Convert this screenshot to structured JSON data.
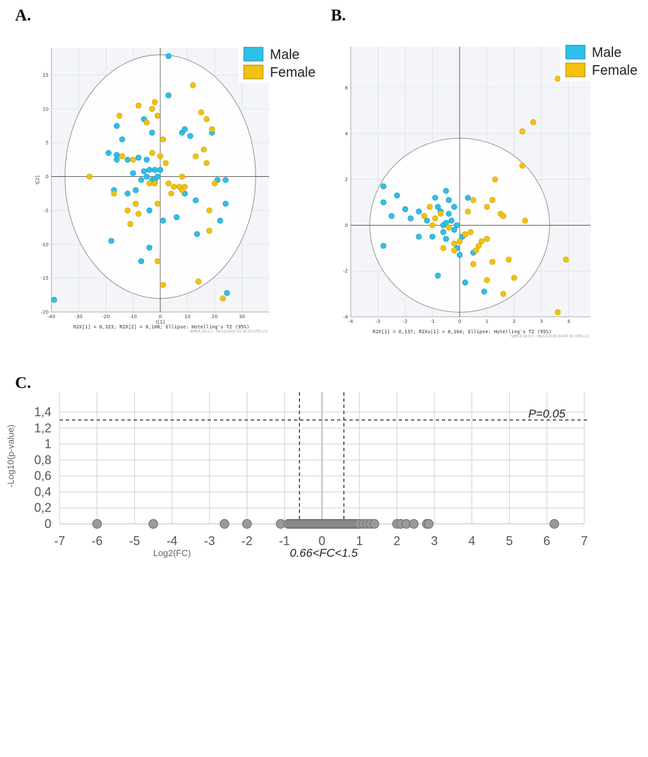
{
  "labels": {
    "a": "A.",
    "b": "B.",
    "c": "C."
  },
  "colors": {
    "male": "#2ec0e8",
    "female": "#f2c20c",
    "gray_point": "#9a9a9a",
    "ellipse": "#888888",
    "plot_bg": "#f3f5f8"
  },
  "chart_data": [
    {
      "type": "scatter",
      "panel": "A",
      "xlabel": "t[1]",
      "ylabel": "t[2]",
      "xlim": [
        -40,
        40
      ],
      "ylim": [
        -20,
        19
      ],
      "xticks": [
        -40,
        -30,
        -20,
        -10,
        0,
        10,
        20,
        30
      ],
      "yticks": [
        15,
        10,
        5,
        0,
        -5,
        -10,
        -15,
        -20
      ],
      "footer": "R2X[1] = 0,323; R2X[2] = 0,108; Ellipse: Hotelling's T2 (95%)",
      "watermark": "SIMCA 15.0.2 - 06/12/2020 15:30:03 (UTC+1)",
      "ellipse": {
        "rx": 35,
        "ry": 18
      },
      "legend": [
        "Male",
        "Female"
      ],
      "series": [
        {
          "name": "Male",
          "points": [
            [
              3,
              17.8
            ],
            [
              -39,
              -18.2
            ],
            [
              24.5,
              -17.2
            ],
            [
              -7,
              -12.5
            ],
            [
              -4,
              -10.5
            ],
            [
              -18,
              -9.5
            ],
            [
              13.5,
              -8.5
            ],
            [
              1,
              -6.5
            ],
            [
              6,
              -6
            ],
            [
              -4,
              -5
            ],
            [
              -17,
              -2
            ],
            [
              22,
              -6.5
            ],
            [
              24,
              -4
            ],
            [
              13,
              -3.5
            ],
            [
              9,
              -2.5
            ],
            [
              -12,
              -2.5
            ],
            [
              -9,
              -2
            ],
            [
              -10,
              0.5
            ],
            [
              -7,
              -0.5
            ],
            [
              -5,
              0
            ],
            [
              -3,
              -0.5
            ],
            [
              -2,
              -0.5
            ],
            [
              -1,
              0
            ],
            [
              0,
              1
            ],
            [
              -4,
              1
            ],
            [
              -5,
              2.5
            ],
            [
              -8,
              2.8
            ],
            [
              -12,
              2.5
            ],
            [
              -16,
              2.5
            ],
            [
              -19,
              3.5
            ],
            [
              -14,
              5.5
            ],
            [
              -16,
              7.5
            ],
            [
              -6,
              8.5
            ],
            [
              -3,
              6.5
            ],
            [
              3,
              12
            ],
            [
              8,
              6.5
            ],
            [
              9,
              7
            ],
            [
              11,
              6
            ],
            [
              19,
              6.5
            ],
            [
              21,
              -0.5
            ],
            [
              24,
              -0.5
            ],
            [
              -16,
              3.2
            ],
            [
              -2,
              1
            ],
            [
              -6,
              0.8
            ]
          ]
        },
        {
          "name": "Female",
          "points": [
            [
              -26,
              0
            ],
            [
              -17,
              -2.5
            ],
            [
              -15,
              9
            ],
            [
              -12,
              -5
            ],
            [
              -11,
              -7
            ],
            [
              -9,
              -4
            ],
            [
              -8,
              -5.5
            ],
            [
              -10,
              2.5
            ],
            [
              -8,
              10.5
            ],
            [
              -5,
              8
            ],
            [
              -3,
              10
            ],
            [
              -2,
              11
            ],
            [
              -1,
              9
            ],
            [
              0,
              3
            ],
            [
              1,
              5.5
            ],
            [
              -1,
              -4
            ],
            [
              -2,
              -1
            ],
            [
              -4,
              -1
            ],
            [
              -3,
              3.5
            ],
            [
              2,
              2
            ],
            [
              3,
              -1
            ],
            [
              4,
              -2.5
            ],
            [
              5,
              -1.5
            ],
            [
              7,
              -1.5
            ],
            [
              8,
              0
            ],
            [
              8,
              -2
            ],
            [
              9,
              -1.5
            ],
            [
              12,
              13.5
            ],
            [
              13,
              3
            ],
            [
              14,
              -15.5
            ],
            [
              15,
              9.5
            ],
            [
              16,
              4
            ],
            [
              17,
              2
            ],
            [
              17,
              8.5
            ],
            [
              18,
              -5
            ],
            [
              18,
              -8
            ],
            [
              19,
              7
            ],
            [
              20,
              -1
            ],
            [
              23,
              -18
            ],
            [
              1,
              -16
            ],
            [
              -1,
              -12.5
            ],
            [
              -14,
              3
            ]
          ]
        }
      ]
    },
    {
      "type": "scatter",
      "panel": "B",
      "xlabel": "",
      "ylabel": "",
      "xlim": [
        -4,
        4.8
      ],
      "ylim": [
        -4,
        7.8
      ],
      "xticks": [
        -4,
        -3,
        -2,
        -1,
        0,
        1,
        2,
        3,
        4
      ],
      "yticks": [
        6,
        4,
        2,
        0,
        -2,
        -4
      ],
      "footer": "R2X[1] = 0,137; R2Xo[1] = 0,164; Ellipse: Hotelling's T2 (95%)",
      "watermark": "SIMCA 15.0.2 - 06/12/2020 14:43:30 (UTC+1)",
      "ellipse": {
        "rx": 3.3,
        "ry": 3.8
      },
      "legend": [
        "Male",
        "Female"
      ],
      "series": [
        {
          "name": "Male",
          "points": [
            [
              -2.8,
              1.7
            ],
            [
              -2.8,
              1.0
            ],
            [
              -2.8,
              -0.9
            ],
            [
              -2.5,
              0.4
            ],
            [
              -2.3,
              1.3
            ],
            [
              -2.0,
              0.7
            ],
            [
              -1.8,
              0.3
            ],
            [
              -1.5,
              0.6
            ],
            [
              -1.5,
              -0.5
            ],
            [
              -1.2,
              0.2
            ],
            [
              -1.0,
              -0.5
            ],
            [
              -0.9,
              1.2
            ],
            [
              -0.8,
              0.8
            ],
            [
              -0.7,
              0.6
            ],
            [
              -0.6,
              0.0
            ],
            [
              -0.5,
              0.1
            ],
            [
              -0.5,
              1.5
            ],
            [
              -0.4,
              0.5
            ],
            [
              -0.3,
              0.2
            ],
            [
              -0.2,
              -0.2
            ],
            [
              -0.1,
              0.0
            ],
            [
              0.0,
              -1.3
            ],
            [
              -0.1,
              -1.0
            ],
            [
              0.1,
              -0.5
            ],
            [
              0.2,
              -0.4
            ],
            [
              0.3,
              1.2
            ],
            [
              0.5,
              -1.2
            ],
            [
              -0.5,
              -0.6
            ],
            [
              0.2,
              -2.5
            ],
            [
              -0.8,
              -2.2
            ],
            [
              0.9,
              -2.9
            ],
            [
              -0.4,
              1.1
            ],
            [
              -0.2,
              0.8
            ],
            [
              -0.6,
              -0.3
            ]
          ]
        },
        {
          "name": "Female",
          "points": [
            [
              3.6,
              6.4
            ],
            [
              2.7,
              4.5
            ],
            [
              2.3,
              4.1
            ],
            [
              2.3,
              2.6
            ],
            [
              1.3,
              2.0
            ],
            [
              0.5,
              1.1
            ],
            [
              1.0,
              0.8
            ],
            [
              1.5,
              0.5
            ],
            [
              1.2,
              1.1
            ],
            [
              1.6,
              0.4
            ],
            [
              2.4,
              0.2
            ],
            [
              3.9,
              -1.5
            ],
            [
              1.8,
              -1.5
            ],
            [
              1.2,
              -1.6
            ],
            [
              1.0,
              -0.6
            ],
            [
              0.8,
              -0.7
            ],
            [
              0.7,
              -0.9
            ],
            [
              0.6,
              -1.1
            ],
            [
              0.5,
              -1.7
            ],
            [
              0.4,
              -0.3
            ],
            [
              0.2,
              -0.4
            ],
            [
              0.0,
              -0.7
            ],
            [
              -0.2,
              -1.1
            ],
            [
              -0.4,
              -0.1
            ],
            [
              -0.6,
              -1.0
            ],
            [
              -0.9,
              0.3
            ],
            [
              -1.1,
              0.8
            ],
            [
              -1.3,
              0.4
            ],
            [
              -0.7,
              0.5
            ],
            [
              1.0,
              -2.4
            ],
            [
              1.6,
              -3.0
            ],
            [
              2.0,
              -2.3
            ],
            [
              3.6,
              -3.8
            ],
            [
              0.3,
              0.6
            ],
            [
              -0.2,
              -0.8
            ],
            [
              -1.0,
              0.0
            ]
          ]
        }
      ]
    },
    {
      "type": "scatter",
      "panel": "C",
      "xlabel": "Log2(FC)",
      "ylabel": "-Log10(p-value)",
      "xlim": [
        -7,
        7
      ],
      "ylim": [
        0,
        1.4
      ],
      "xticks": [
        "-7",
        "-6",
        "-5",
        "-4",
        "-3",
        "-2",
        "-1",
        "0",
        "1",
        "2",
        "3",
        "4",
        "5",
        "6",
        "7"
      ],
      "yticks": [
        "1,4",
        "1,2",
        "1",
        "0,8",
        "0,6",
        "0,4",
        "0,2",
        "0"
      ],
      "threshold_p_label": "P=0.05",
      "threshold_fc_label": "0.66<FC<1.5",
      "threshold_y": 1.301,
      "threshold_x": [
        -0.6,
        0.585
      ],
      "points_x": [
        -6.0,
        -4.5,
        -2.6,
        -2.0,
        -1.1,
        -0.9,
        -0.85,
        -0.8,
        -0.75,
        -0.7,
        -0.65,
        -0.6,
        -0.55,
        -0.5,
        -0.45,
        -0.4,
        -0.35,
        -0.3,
        -0.25,
        -0.2,
        -0.15,
        -0.1,
        -0.05,
        0.0,
        0.05,
        0.1,
        0.15,
        0.2,
        0.25,
        0.3,
        0.35,
        0.4,
        0.45,
        0.5,
        0.55,
        0.6,
        0.65,
        0.7,
        0.75,
        0.8,
        0.85,
        0.9,
        0.95,
        1.0,
        1.1,
        1.2,
        1.3,
        1.4,
        2.0,
        2.1,
        2.25,
        2.45,
        2.8,
        2.85,
        6.2
      ],
      "points_y": 0
    }
  ]
}
